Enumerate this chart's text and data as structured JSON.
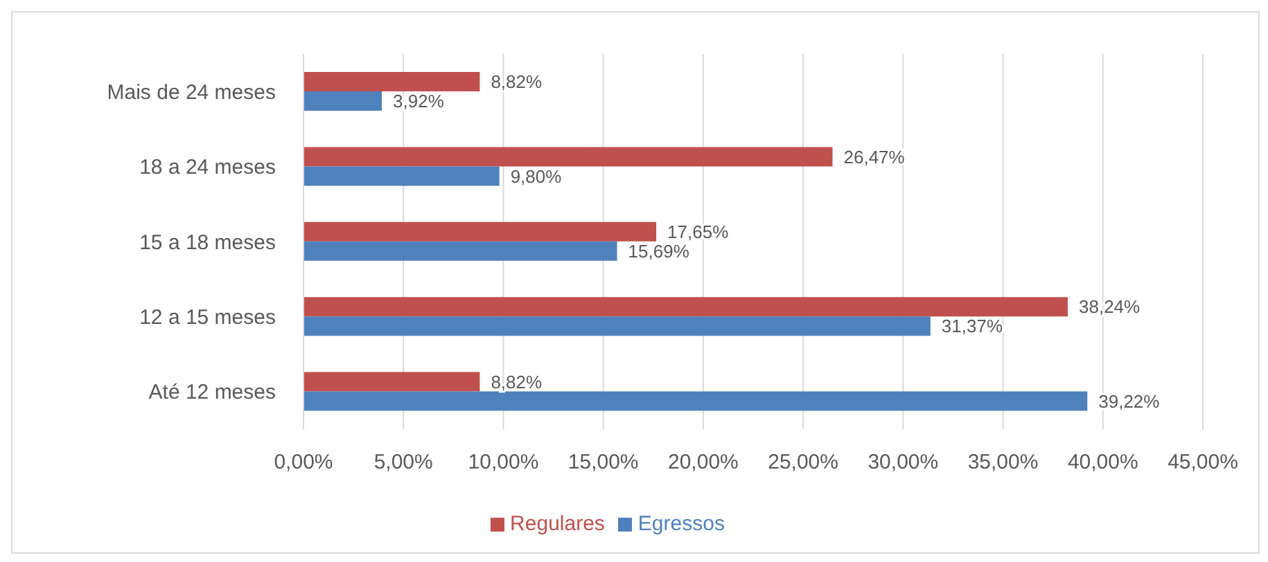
{
  "chart_data": {
    "type": "bar",
    "orientation": "horizontal",
    "categories": [
      "Mais de 24 meses",
      "18 a 24 meses",
      "15 a 18 meses",
      "12 a 15 meses",
      "Até 12 meses"
    ],
    "series": [
      {
        "name": "Regulares",
        "color": "#c0504d",
        "values": [
          8.82,
          26.47,
          17.65,
          38.24,
          8.82
        ],
        "value_labels": [
          "8,82%",
          "26,47%",
          "17,65%",
          "38,24%",
          "8,82%"
        ]
      },
      {
        "name": "Egressos",
        "color": "#4f81bd",
        "values": [
          3.92,
          9.8,
          15.69,
          31.37,
          39.22
        ],
        "value_labels": [
          "3,92%",
          "9,80%",
          "15,69%",
          "31,37%",
          "39,22%"
        ]
      }
    ],
    "xlim": [
      0,
      45
    ],
    "xticks": [
      {
        "value": 0,
        "label": "0,00%"
      },
      {
        "value": 5,
        "label": "5,00%"
      },
      {
        "value": 10,
        "label": "10,00%"
      },
      {
        "value": 15,
        "label": "15,00%"
      },
      {
        "value": 20,
        "label": "20,00%"
      },
      {
        "value": 25,
        "label": "25,00%"
      },
      {
        "value": 30,
        "label": "30,00%"
      },
      {
        "value": 35,
        "label": "35,00%"
      },
      {
        "value": 40,
        "label": "40,00%"
      },
      {
        "value": 45,
        "label": "45,00%"
      }
    ],
    "grid": "x",
    "legend": "bottom"
  }
}
